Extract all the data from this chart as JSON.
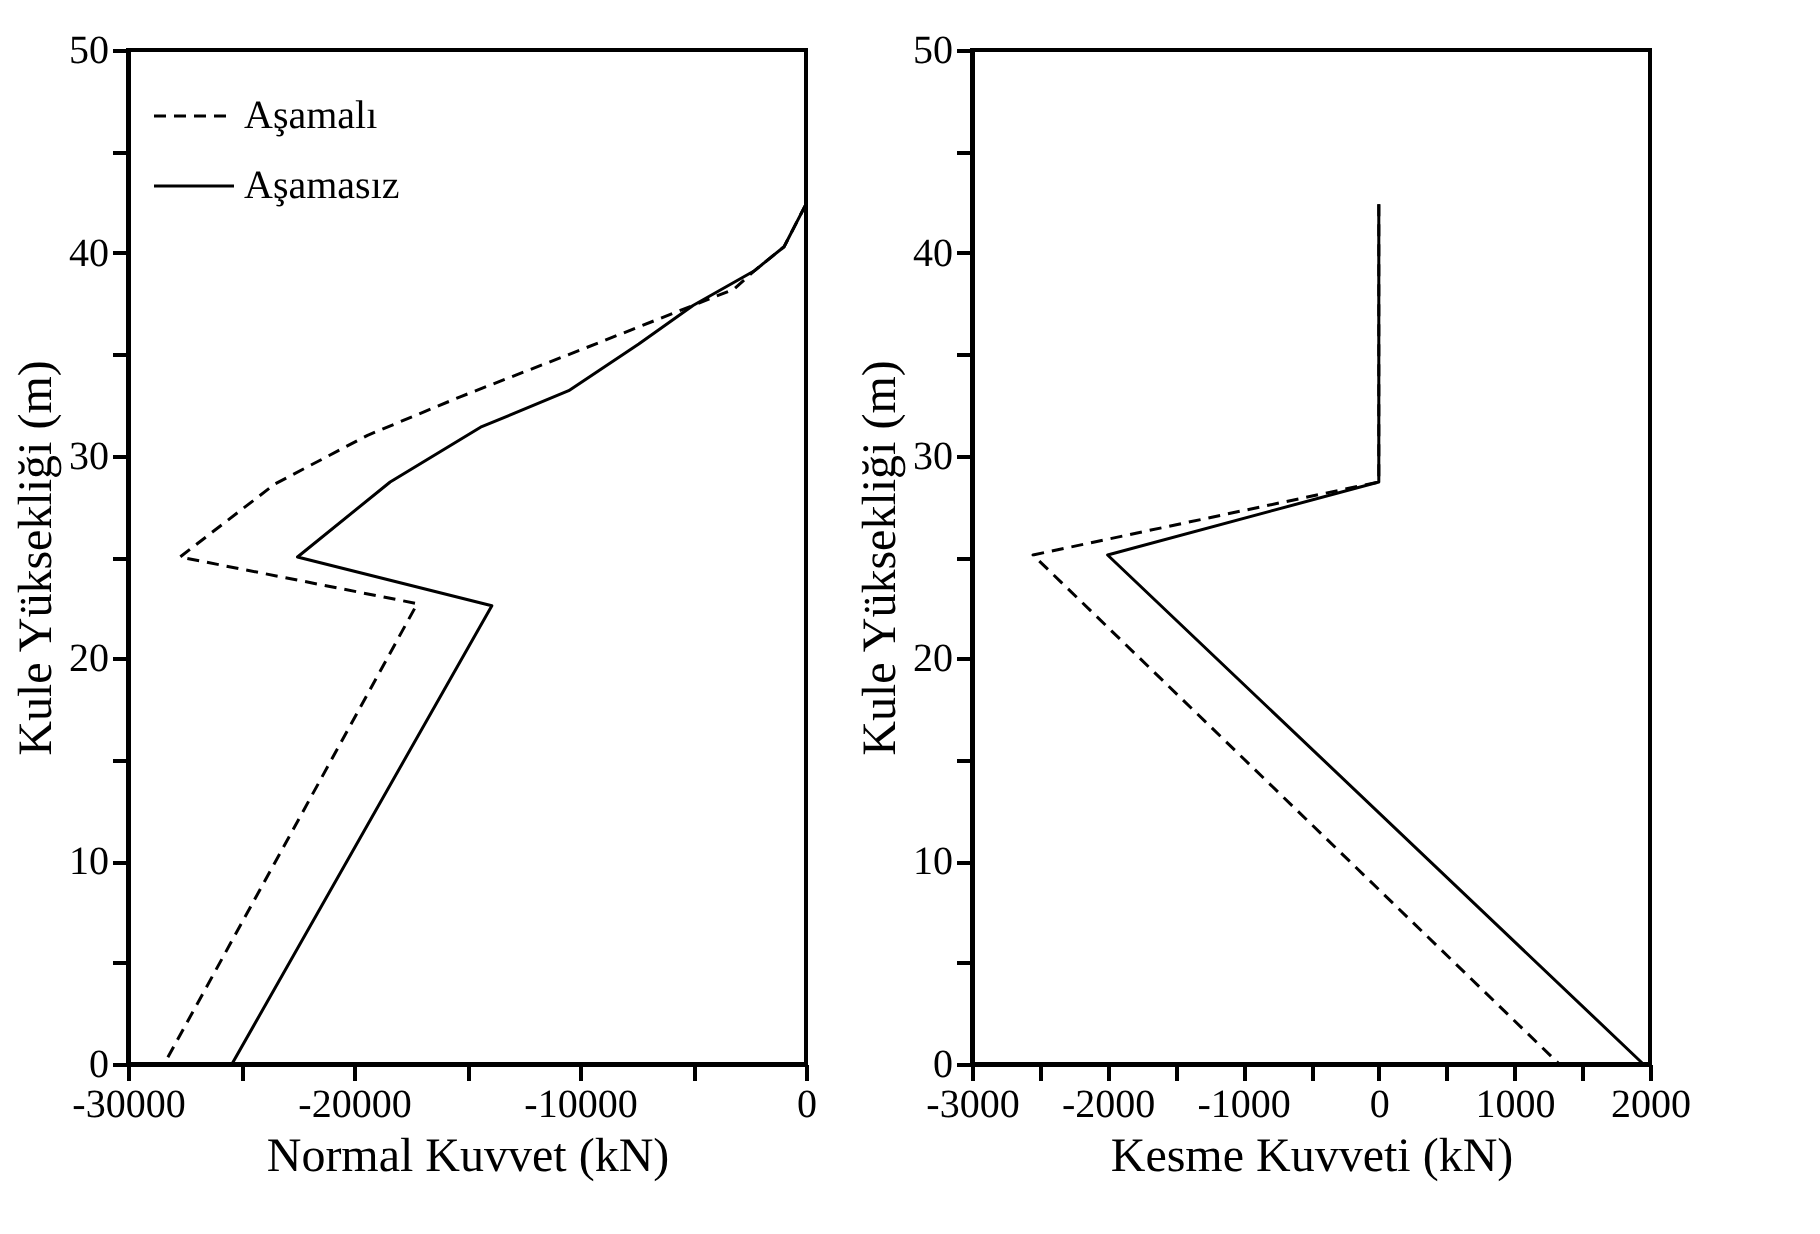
{
  "chart_data": [
    {
      "type": "line",
      "xlabel": "Normal Kuvvet (kN)",
      "ylabel": "Kule Yüksekliği (m)",
      "legend": "top left",
      "grid": false,
      "xlim": [
        -30000,
        0
      ],
      "ylim": [
        0,
        50
      ],
      "xticks": [
        -30000,
        {
          "value": -25000,
          "label": null
        },
        -20000,
        {
          "value": -15000,
          "label": null
        },
        -10000,
        {
          "value": -5000,
          "label": null
        },
        0
      ],
      "yticks": [
        0,
        {
          "value": 5,
          "label": null
        },
        10,
        {
          "value": 15,
          "label": null
        },
        20,
        {
          "value": 25,
          "label": null
        },
        30,
        {
          "value": 35,
          "label": null
        },
        40,
        {
          "value": 45,
          "label": null
        },
        50
      ],
      "series": [
        {
          "name": "Aşamalı",
          "color": "#000000",
          "line_style": "dashed",
          "x": [
            0,
            -970,
            -2300,
            -3200,
            -10000,
            -15300,
            -19400,
            -23500,
            -27700,
            -17200,
            -28400
          ],
          "values": [
            42.4,
            40.3,
            39.1,
            38.2,
            35.2,
            32.9,
            31.0,
            28.6,
            25.0,
            22.7,
            0
          ]
        },
        {
          "name": "Aşamasız",
          "color": "#000000",
          "line_style": "solid",
          "x": [
            0,
            -970,
            -2300,
            -5000,
            -7400,
            -10500,
            -14400,
            -18400,
            -22500,
            -13900,
            -25400
          ],
          "values": [
            42.4,
            40.3,
            39.1,
            37.4,
            35.5,
            33.2,
            31.4,
            28.7,
            25.0,
            22.6,
            0
          ]
        }
      ]
    },
    {
      "type": "line",
      "xlabel": "Kesme Kuvveti (kN)",
      "ylabel": "Kule Yüksekliği (m)",
      "legend": "top left",
      "grid": false,
      "xlim": [
        -3000,
        2000
      ],
      "ylim": [
        0,
        50
      ],
      "xticks": [
        -3000,
        {
          "value": -2500,
          "label": null
        },
        -2000,
        {
          "value": -1500,
          "label": null
        },
        -1000,
        {
          "value": -500,
          "label": null
        },
        0,
        {
          "value": 500,
          "label": null
        },
        1000,
        {
          "value": 1500,
          "label": null
        },
        2000
      ],
      "yticks": [
        0,
        {
          "value": 5,
          "label": null
        },
        10,
        {
          "value": 15,
          "label": null
        },
        20,
        {
          "value": 25,
          "label": null
        },
        30,
        {
          "value": 35,
          "label": null
        },
        40,
        {
          "value": 45,
          "label": null
        },
        50
      ],
      "series": [
        {
          "name": "Aşamalı",
          "color": "#000000",
          "line_style": "dashed",
          "x": [
            0,
            0,
            -2550,
            1330
          ],
          "values": [
            42.4,
            28.7,
            25.1,
            0
          ]
        },
        {
          "name": "Aşamasız",
          "color": "#000000",
          "line_style": "solid",
          "x": [
            0,
            0,
            -2000,
            1950
          ],
          "values": [
            42.4,
            28.7,
            25.1,
            0
          ]
        }
      ]
    }
  ]
}
